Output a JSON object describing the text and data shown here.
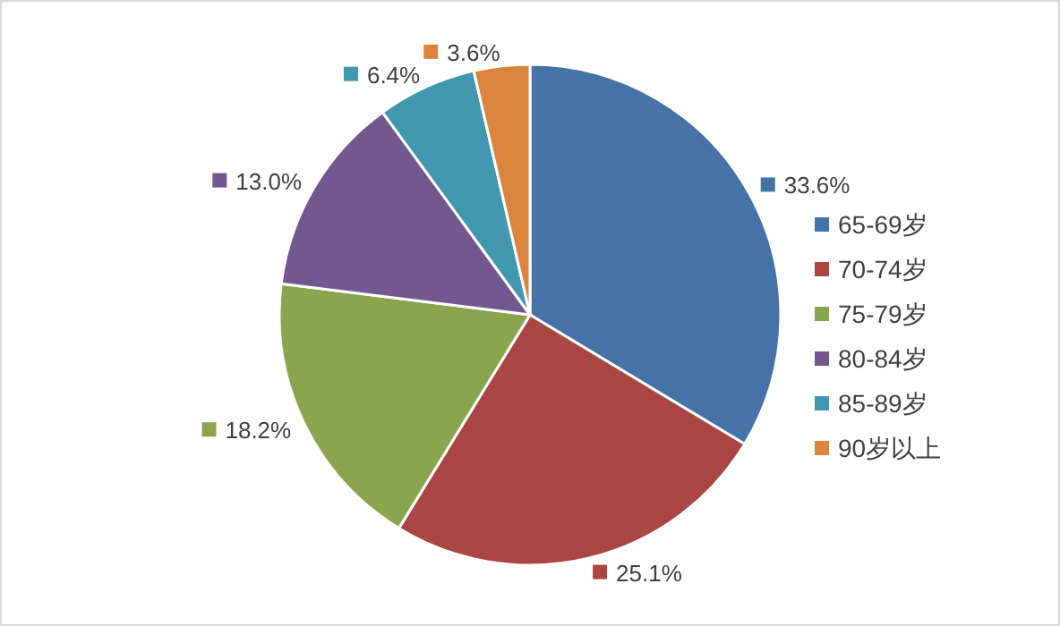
{
  "chart_data": {
    "type": "pie",
    "categories": [
      "65-69岁",
      "70-74岁",
      "75-79岁",
      "80-84岁",
      "85-89岁",
      "90岁以上"
    ],
    "values": [
      33.6,
      25.1,
      18.2,
      13.0,
      6.4,
      3.6
    ],
    "value_labels": [
      "33.6%",
      "25.1%",
      "18.2%",
      "13.0%",
      "6.4%",
      "3.6%"
    ],
    "colors": [
      "#4572a7",
      "#aa4643",
      "#89a54e",
      "#71588f",
      "#4198af",
      "#db843d"
    ],
    "legend": "right"
  }
}
